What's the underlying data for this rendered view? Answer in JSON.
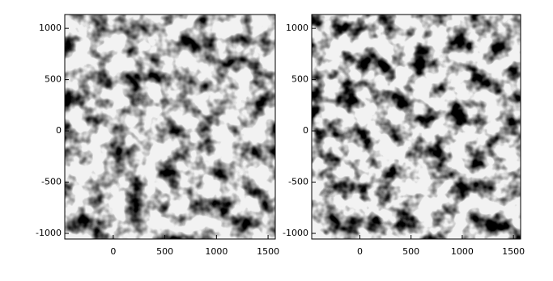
{
  "chart_data": [
    {
      "type": "image",
      "xlim": [
        -470,
        1570
      ],
      "ylim": [
        -1055,
        1135
      ],
      "xticks": [
        0,
        500,
        1000,
        1500
      ],
      "yticks": [
        -1000,
        -500,
        0,
        500,
        1000
      ]
    },
    {
      "type": "image",
      "xlim": [
        -470,
        1570
      ],
      "ylim": [
        -1055,
        1135
      ],
      "xticks": [
        0,
        500,
        1000,
        1500
      ],
      "yticks": [
        -1000,
        -500,
        0,
        500,
        1000
      ]
    }
  ]
}
